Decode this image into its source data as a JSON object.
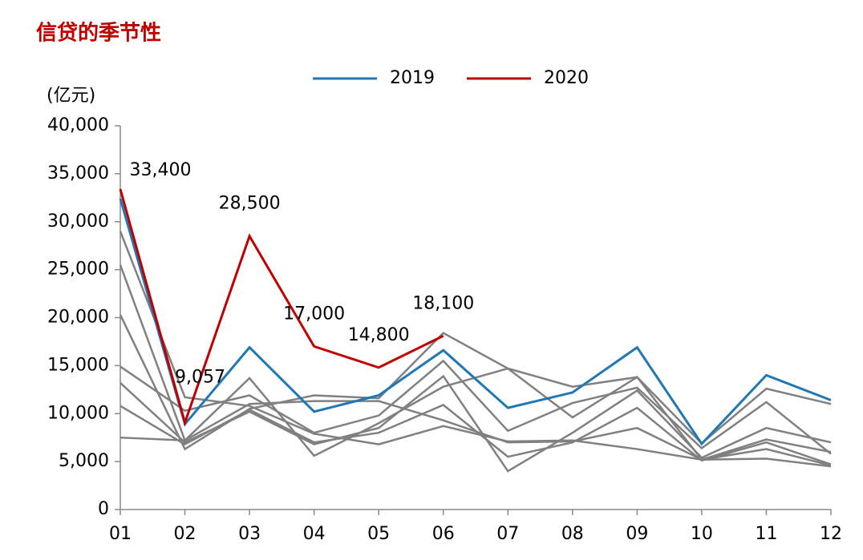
{
  "chart_data": {
    "type": "line",
    "title": "信贷的季节性",
    "y_label": "(亿元)",
    "categories": [
      "01",
      "02",
      "03",
      "04",
      "05",
      "06",
      "07",
      "08",
      "09",
      "10",
      "11",
      "12"
    ],
    "ylim": [
      0,
      40000
    ],
    "yticks": [
      0,
      {
        "value": 5000,
        "label": "5,000"
      },
      {
        "value": 10000,
        "label": "10,000"
      },
      {
        "value": 15000,
        "label": "15,000"
      },
      {
        "value": 20000,
        "label": "20,000"
      },
      {
        "value": 25000,
        "label": "25,000"
      },
      {
        "value": 30000,
        "label": "30,000"
      },
      {
        "value": 35000,
        "label": "35,000"
      },
      {
        "value": 40000,
        "label": "40,000"
      }
    ],
    "legend": "top",
    "series": [
      {
        "color": "#808080",
        "values": [
          29000,
          11700,
          10800,
          7900,
          6800,
          8700,
          7100,
          7200,
          6300,
          5200,
          5300,
          4500
        ]
      },
      {
        "color": "#808080",
        "values": [
          25500,
          7200,
          13700,
          5600,
          9000,
          12800,
          14700,
          9600,
          13800,
          5200,
          7300,
          6000
        ]
      },
      {
        "color": "#808080",
        "values": [
          20300,
          6300,
          10500,
          11900,
          11600,
          18400,
          14700,
          12800,
          13800,
          6900,
          12600,
          11000
        ]
      },
      {
        "color": "#808080",
        "values": [
          14900,
          10300,
          11900,
          8000,
          9800,
          15500,
          8200,
          11100,
          12700,
          6400,
          11200,
          5800
        ]
      },
      {
        "color": "#808080",
        "values": [
          13200,
          7000,
          10200,
          6800,
          8500,
          13900,
          4000,
          8000,
          12400,
          5400,
          8500,
          7000
        ]
      },
      {
        "color": "#808080",
        "values": [
          10800,
          6800,
          10400,
          7000,
          8000,
          10900,
          5500,
          7000,
          10600,
          5100,
          7000,
          4700
        ]
      },
      {
        "color": "#808080",
        "values": [
          7500,
          7200,
          11000,
          11300,
          11300,
          9300,
          7000,
          7100,
          8500,
          5200,
          6300,
          4600
        ]
      },
      {
        "name": "2019",
        "color": "#1f77b4",
        "values": [
          32400,
          8900,
          16900,
          10200,
          11900,
          16600,
          10600,
          12200,
          16900,
          6850,
          14000,
          11400
        ]
      },
      {
        "name": "2020",
        "color": "#c00000",
        "values": [
          33400,
          9057,
          28500,
          17000,
          14800,
          18100,
          null,
          null,
          null,
          null,
          null,
          null
        ],
        "value_labels": [
          "33,400",
          "9,057",
          "28,500",
          "17,000",
          "14,800",
          "18,100",
          null,
          null,
          null,
          null,
          null,
          null
        ]
      }
    ]
  }
}
